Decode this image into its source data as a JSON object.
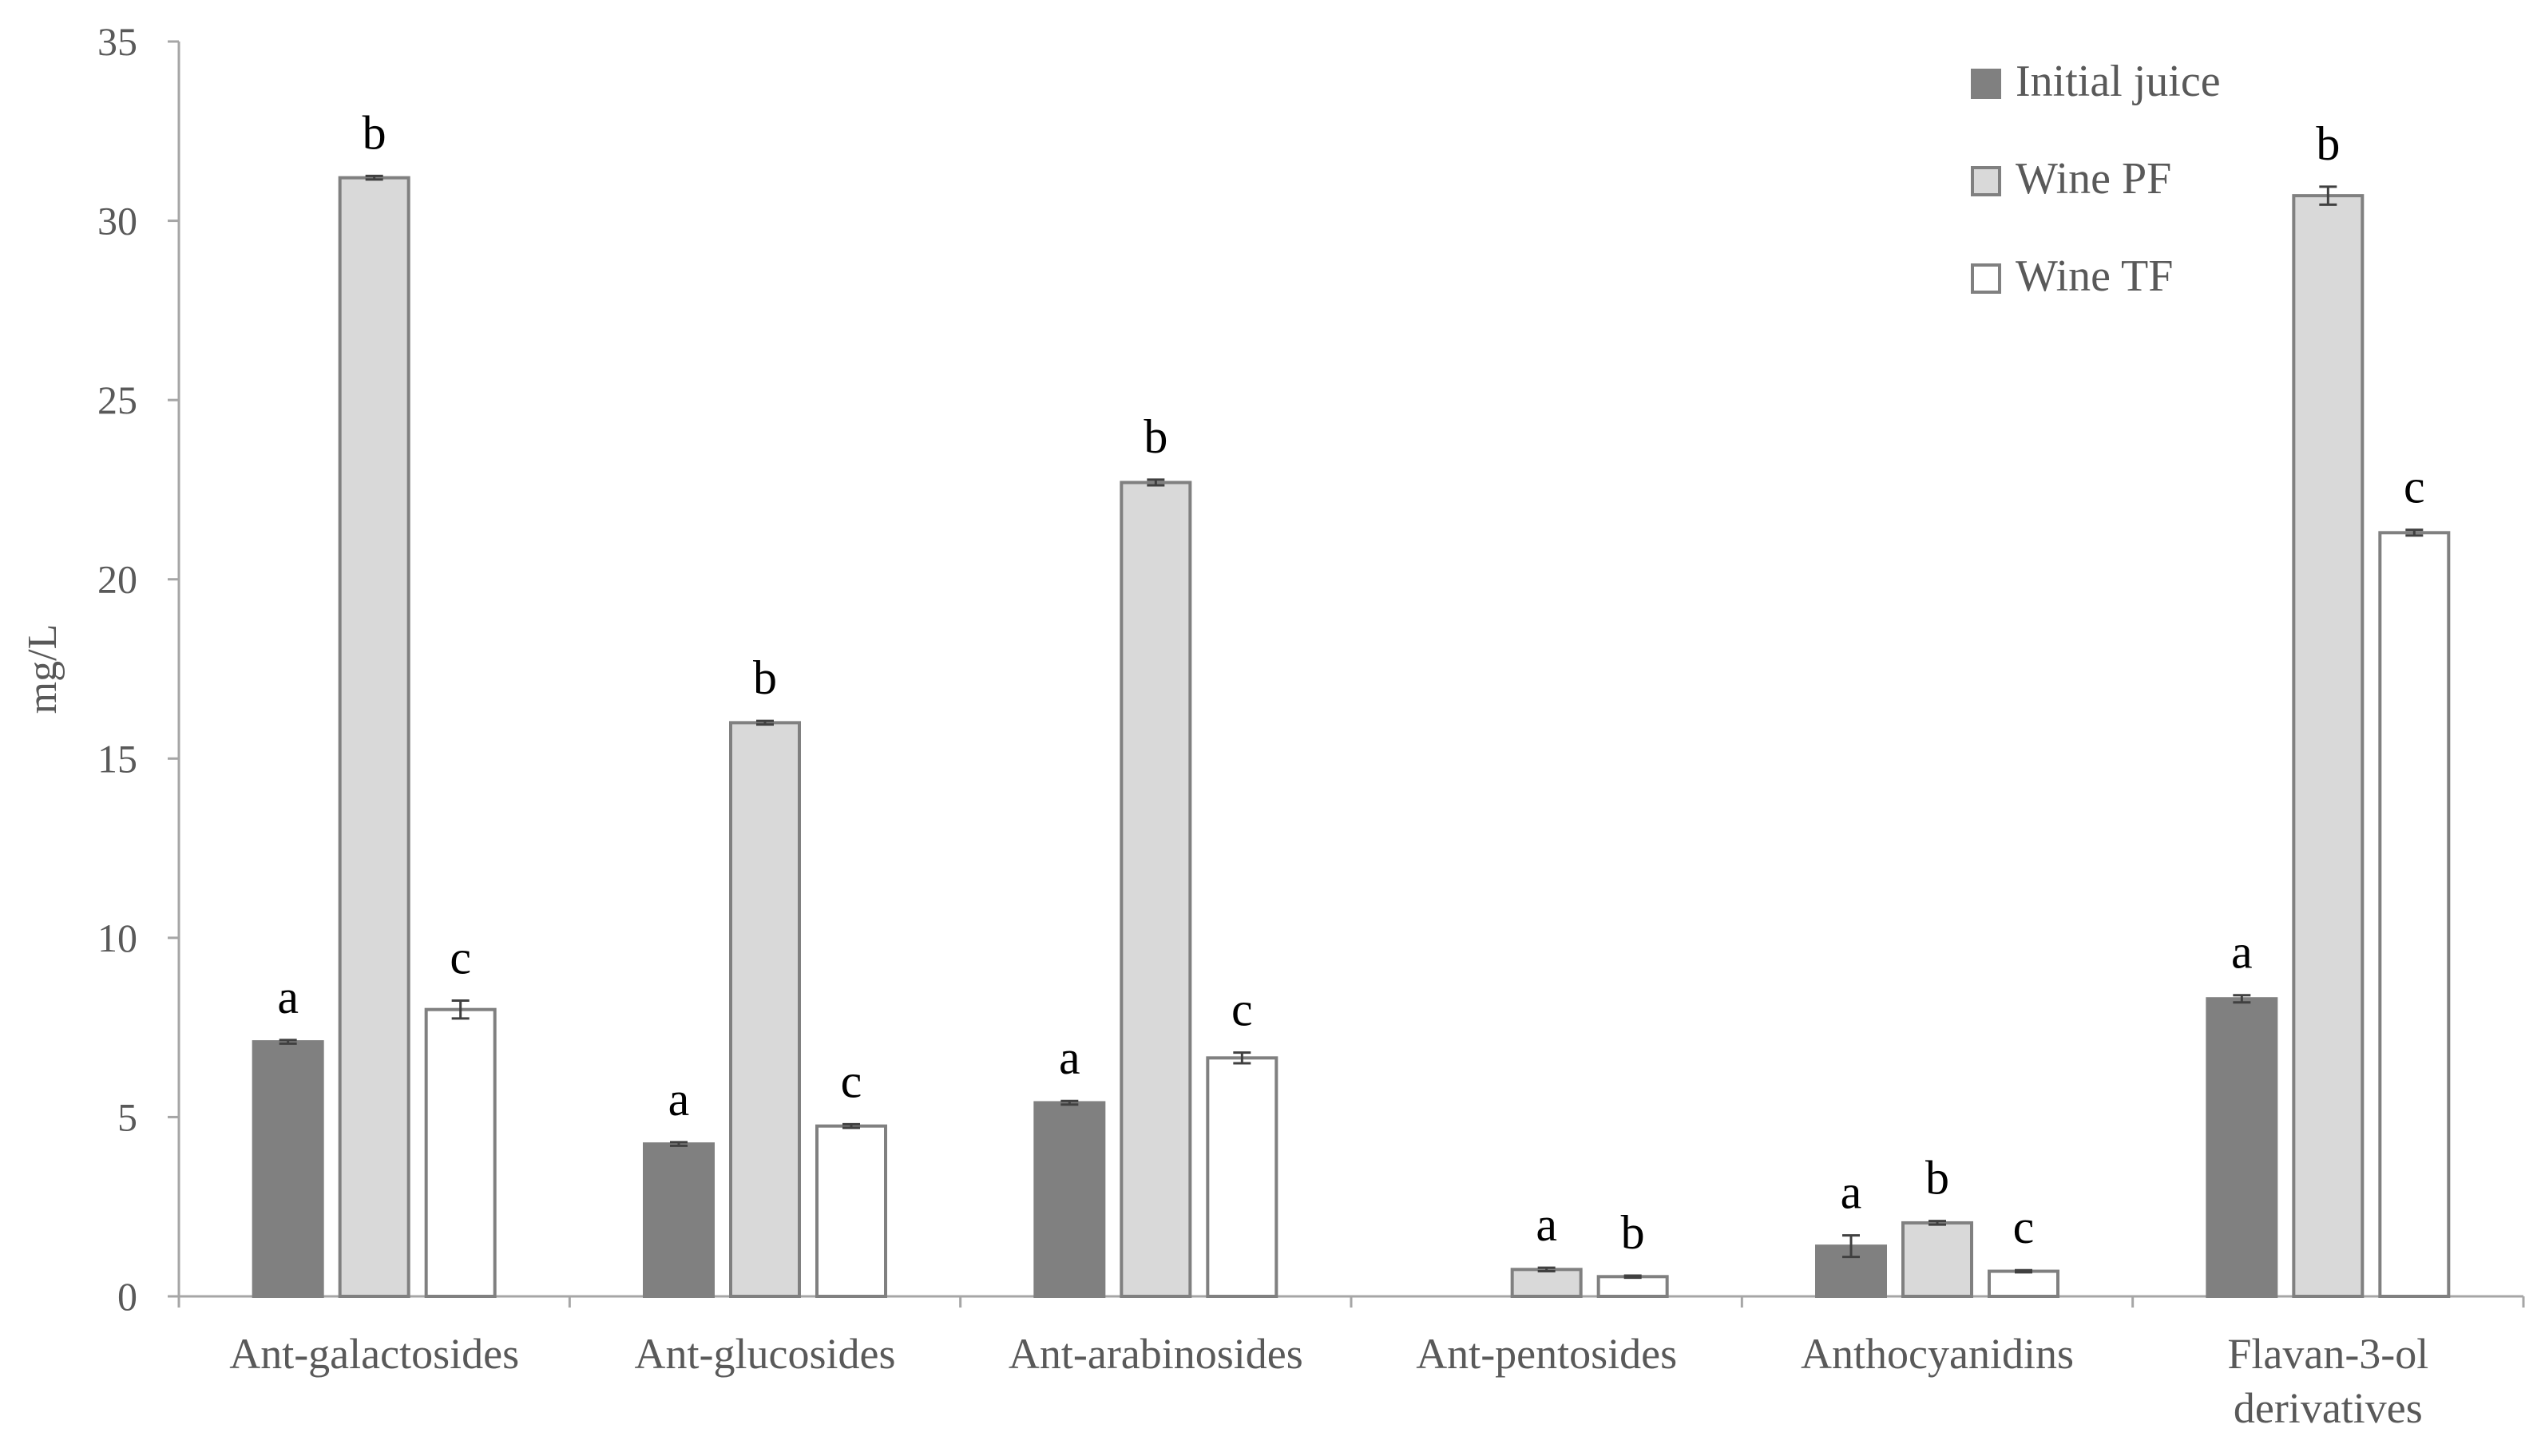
{
  "chart_data": {
    "type": "bar",
    "title": "",
    "xlabel": "",
    "ylabel": "mg/L",
    "ylim": [
      0,
      35
    ],
    "yticks": [
      0,
      5,
      10,
      15,
      20,
      25,
      30,
      35
    ],
    "grid": false,
    "legend_position": "top-right",
    "categories": [
      [
        "Ant-galactosides"
      ],
      [
        "Ant-glucosides"
      ],
      [
        "Ant-arabinosides"
      ],
      [
        "Ant-pentosides"
      ],
      [
        "Anthocyanidins"
      ],
      [
        "Flavan-3-ol",
        "derivatives"
      ]
    ],
    "series": [
      {
        "name": "Initial juice",
        "color": "#808080",
        "values": [
          7.1,
          4.25,
          5.4,
          null,
          1.4,
          8.3
        ],
        "errors": [
          0.05,
          0.05,
          0.05,
          null,
          0.3,
          0.1
        ],
        "letters": [
          "a",
          "a",
          "a",
          "",
          "a",
          "a"
        ]
      },
      {
        "name": "Wine PF",
        "color": "#d9d9d9",
        "values": [
          31.2,
          16.0,
          22.7,
          0.75,
          2.05,
          30.7
        ],
        "errors": [
          0.05,
          0.05,
          0.08,
          0.05,
          0.05,
          0.25
        ],
        "letters": [
          "b",
          "b",
          "b",
          "a",
          "b",
          "b"
        ]
      },
      {
        "name": "Wine TF",
        "color": "#ffffff",
        "values": [
          8.0,
          4.75,
          6.65,
          0.55,
          0.7,
          21.3
        ],
        "errors": [
          0.25,
          0.05,
          0.15,
          0.03,
          0.03,
          0.08
        ],
        "letters": [
          "c",
          "c",
          "c",
          "b",
          "c",
          "c"
        ]
      }
    ]
  }
}
